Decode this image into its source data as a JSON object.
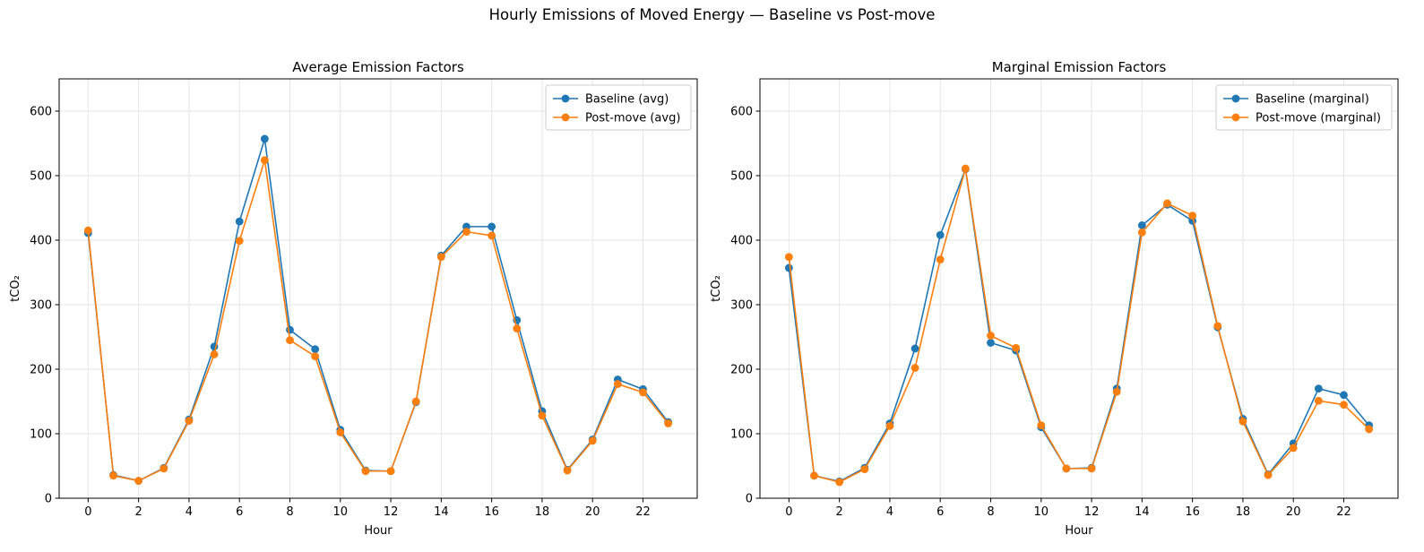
{
  "suptitle": "Hourly Emissions of Moved Energy — Baseline vs Post-move",
  "colors": {
    "baseline": "#1f77b4",
    "postmove": "#ff7f0e",
    "grid": "#e6e6e6"
  },
  "chart_data": [
    {
      "type": "line",
      "title": "Average Emission Factors",
      "xlabel": "Hour",
      "ylabel": "tCO₂",
      "xlim": [
        -1.15,
        24.15
      ],
      "ylim": [
        0,
        650
      ],
      "xticks": [
        0,
        2,
        4,
        6,
        8,
        10,
        12,
        14,
        16,
        18,
        20,
        22
      ],
      "yticks": [
        0,
        100,
        200,
        300,
        400,
        500,
        600
      ],
      "grid": true,
      "legend": "upper right",
      "x": [
        0,
        1,
        2,
        3,
        4,
        5,
        6,
        7,
        8,
        9,
        10,
        11,
        12,
        13,
        14,
        15,
        16,
        17,
        18,
        19,
        20,
        21,
        22,
        23
      ],
      "series": [
        {
          "name": "Baseline (avg)",
          "color": "#1f77b4",
          "values": [
            411,
            36,
            27,
            47,
            122,
            235,
            429,
            557,
            261,
            231,
            106,
            43,
            42,
            149,
            376,
            421,
            421,
            276,
            135,
            44,
            91,
            184,
            169,
            118
          ]
        },
        {
          "name": "Post-move (avg)",
          "color": "#ff7f0e",
          "values": [
            415,
            35,
            27,
            46,
            120,
            223,
            399,
            524,
            245,
            220,
            102,
            42,
            42,
            150,
            374,
            413,
            407,
            263,
            128,
            43,
            89,
            177,
            164,
            116
          ]
        }
      ]
    },
    {
      "type": "line",
      "title": "Marginal Emission Factors",
      "xlabel": "Hour",
      "ylabel": "tCO₂",
      "xlim": [
        -1.15,
        24.15
      ],
      "ylim": [
        0,
        650
      ],
      "xticks": [
        0,
        2,
        4,
        6,
        8,
        10,
        12,
        14,
        16,
        18,
        20,
        22
      ],
      "yticks": [
        0,
        100,
        200,
        300,
        400,
        500,
        600
      ],
      "grid": true,
      "legend": "upper right",
      "x": [
        0,
        1,
        2,
        3,
        4,
        5,
        6,
        7,
        8,
        9,
        10,
        11,
        12,
        13,
        14,
        15,
        16,
        17,
        18,
        19,
        20,
        21,
        22,
        23
      ],
      "series": [
        {
          "name": "Baseline (marginal)",
          "color": "#1f77b4",
          "values": [
            357,
            35,
            26,
            47,
            116,
            232,
            408,
            510,
            241,
            229,
            110,
            46,
            47,
            170,
            423,
            455,
            430,
            265,
            123,
            37,
            85,
            170,
            160,
            113
          ]
        },
        {
          "name": "Post-move (marginal)",
          "color": "#ff7f0e",
          "values": [
            374,
            35,
            25,
            45,
            112,
            202,
            370,
            511,
            252,
            233,
            113,
            46,
            46,
            165,
            412,
            457,
            438,
            267,
            119,
            36,
            78,
            151,
            145,
            107
          ]
        }
      ]
    }
  ]
}
